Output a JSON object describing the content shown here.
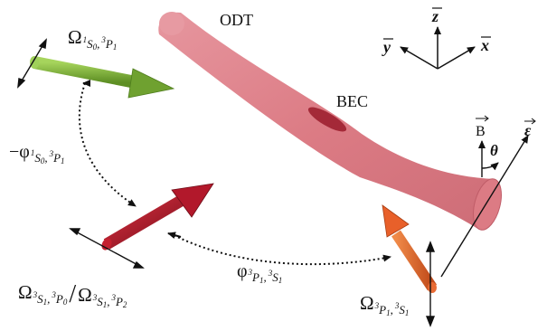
{
  "labels": {
    "odt": "ODT",
    "bec": "BEC",
    "axis_z": "z",
    "axis_y": "y",
    "axis_x": "x",
    "field_b": "B",
    "polarization": "ε",
    "angle": "θ"
  },
  "omega_green": {
    "main": "Ω",
    "sub_1": "1",
    "sub_s": "S",
    "sub_0": "0",
    "sub_comma": ",",
    "sub_3": "3",
    "sub_p": "P",
    "sub_1b": "1"
  },
  "phi_green_red": {
    "sign": "−φ",
    "sub_1": "1",
    "sub_s": "S",
    "sub_0": "0",
    "sub_comma": ",",
    "sub_3": "3",
    "sub_p": "P",
    "sub_1b": "1"
  },
  "omega_red_a": {
    "main": "Ω",
    "sub_3": "3",
    "sub_s": "S",
    "sub_1": "1",
    "sub_comma": ",",
    "sub_3b": "3",
    "sub_p": "P",
    "sub_0": "0"
  },
  "slash": "/",
  "omega_red_b": {
    "main": "Ω",
    "sub_3": "3",
    "sub_s": "S",
    "sub_1": "1",
    "sub_comma": ",",
    "sub_3b": "3",
    "sub_p": "P",
    "sub_2": "2"
  },
  "phi_red_orange": {
    "main": "φ",
    "sub_3": "3",
    "sub_p": "P",
    "sub_1": "1",
    "sub_comma": ",",
    "sub_3b": "3",
    "sub_s": "S",
    "sub_1b": "1"
  },
  "omega_orange": {
    "main": "Ω",
    "sub_3": "3",
    "sub_p": "P",
    "sub_1": "1",
    "sub_comma": ",",
    "sub_3b": "3",
    "sub_s": "S",
    "sub_1b": "1"
  },
  "colors": {
    "odt_fill": "#d9707a",
    "odt_dark": "#b94a58",
    "bec_fill": "#9a1b2a",
    "green_beam": "#7fb23a",
    "green_dark": "#4f7d1e",
    "red_beam": "#b2182b",
    "red_dark": "#6e0d18",
    "orange_beam": "#e8602a",
    "orange_dark": "#a83d12"
  }
}
